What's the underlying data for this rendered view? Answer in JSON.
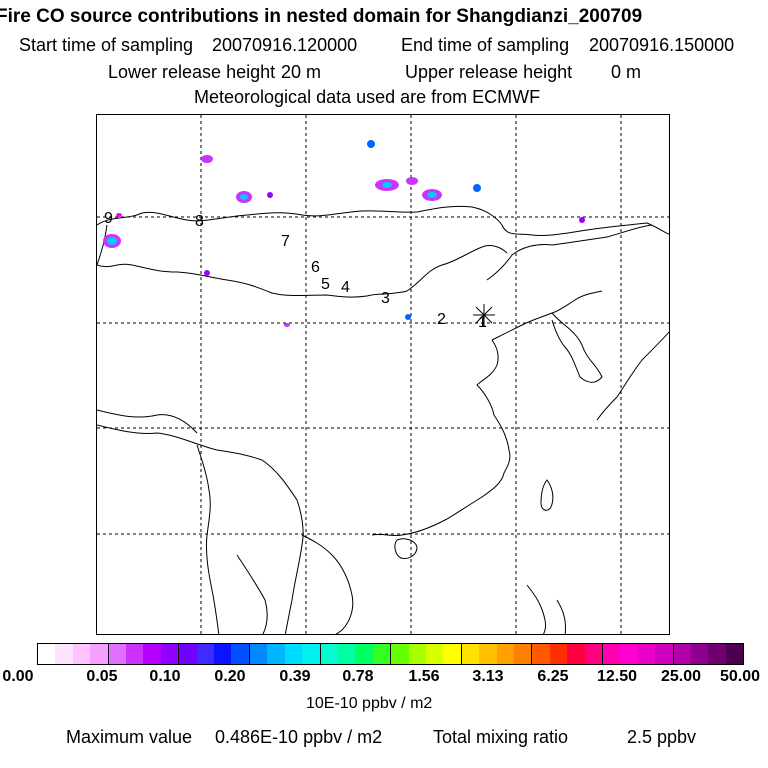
{
  "header": {
    "title": "Fire CO source contributions in nested domain for Shangdianzi_200709",
    "start_label": "Start time of sampling",
    "start_value": "20070916.120000",
    "end_label": "End time of sampling",
    "end_value": "20070916.150000",
    "lower_label": "Lower release height",
    "lower_value": "20 m",
    "upper_label": "Upper release height",
    "upper_value": "0 m",
    "met_line": "Meteorological data used are from ECMWF"
  },
  "map": {
    "trajectory_labels": [
      "1",
      "2",
      "3",
      "4",
      "5",
      "6",
      "7",
      "8",
      "9"
    ],
    "receptor_marker": "star-marker",
    "gridline_style": "dashed",
    "plume_colors": [
      "#ff00ff",
      "#cc33ff",
      "#9900ff",
      "#0066ff",
      "#00ccff",
      "#33ffff"
    ]
  },
  "colorbar": {
    "colors": [
      "#ffffff",
      "#ffe4ff",
      "#ffc4ff",
      "#f3a0ff",
      "#e070ff",
      "#cc33ff",
      "#b300ff",
      "#8f00ff",
      "#7000ff",
      "#3d2bff",
      "#0a14ff",
      "#0050ff",
      "#0088ff",
      "#00b4ff",
      "#00dcff",
      "#00f0f0",
      "#00ffd0",
      "#00ffa0",
      "#00ff60",
      "#33ff22",
      "#66ff00",
      "#a8ff00",
      "#d8ff00",
      "#ffff00",
      "#ffe000",
      "#ffc000",
      "#ffa000",
      "#ff8000",
      "#ff5a00",
      "#ff3000",
      "#ff0040",
      "#ff0080",
      "#ff00b0",
      "#ff00d0",
      "#e800c8",
      "#d000c0",
      "#b000a8",
      "#900090",
      "#700070",
      "#4d0050"
    ],
    "tick_labels": [
      "0.00",
      "0.05",
      "0.10",
      "0.20",
      "0.39",
      "0.78",
      "1.56",
      "3.13",
      "6.25",
      "12.50",
      "25.00",
      "50.00"
    ],
    "unit_label": "10E-10 ppbv / m2"
  },
  "footer": {
    "max_label": "Maximum value",
    "max_value": "0.486E-10 ppbv / m2",
    "total_label": "Total mixing ratio",
    "total_value": "2.5 ppbv"
  }
}
